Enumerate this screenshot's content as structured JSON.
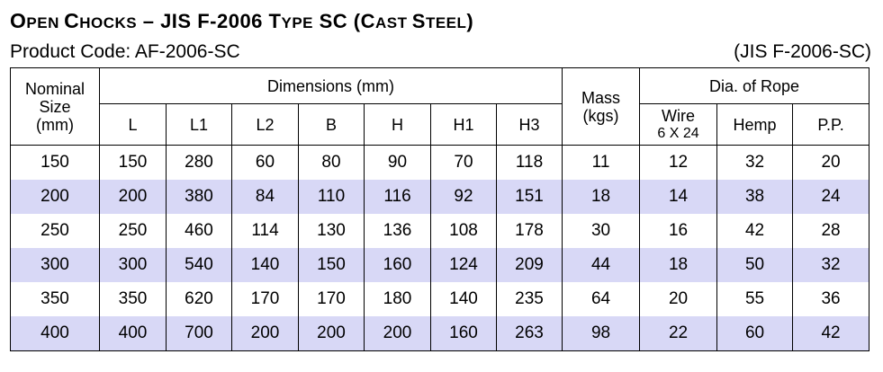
{
  "header": {
    "title_parts": [
      "O",
      "PEN ",
      "C",
      "HOCKS",
      " – JIS F-2006 ",
      "T",
      "YPE",
      " SC (",
      "C",
      "AST ",
      "S",
      "TEEL",
      ")"
    ],
    "product_code": "Product Code: AF-2006-SC",
    "standard": "(JIS F-2006-SC)"
  },
  "table": {
    "headers": {
      "nominal_line1": "Nominal",
      "nominal_line2": "Size",
      "nominal_line3": "(mm)",
      "dimensions": "Dimensions (mm)",
      "mass_line1": "Mass",
      "mass_line2": "(kgs)",
      "rope": "Dia. of Rope",
      "dims": [
        "L",
        "L1",
        "L2",
        "B",
        "H",
        "H1",
        "H3"
      ],
      "wire_line1": "Wire",
      "wire_line2": "6 X 24",
      "hemp": "Hemp",
      "pp": "P.P."
    },
    "rows": [
      [
        "150",
        "150",
        "280",
        "60",
        "80",
        "90",
        "70",
        "118",
        "11",
        "12",
        "32",
        "20"
      ],
      [
        "200",
        "200",
        "380",
        "84",
        "110",
        "116",
        "92",
        "151",
        "18",
        "14",
        "38",
        "24"
      ],
      [
        "250",
        "250",
        "460",
        "114",
        "130",
        "136",
        "108",
        "178",
        "30",
        "16",
        "42",
        "28"
      ],
      [
        "300",
        "300",
        "540",
        "140",
        "150",
        "160",
        "124",
        "209",
        "44",
        "18",
        "50",
        "32"
      ],
      [
        "350",
        "350",
        "620",
        "170",
        "170",
        "180",
        "140",
        "235",
        "64",
        "20",
        "55",
        "36"
      ],
      [
        "400",
        "400",
        "700",
        "200",
        "200",
        "200",
        "160",
        "263",
        "98",
        "22",
        "60",
        "42"
      ]
    ]
  }
}
